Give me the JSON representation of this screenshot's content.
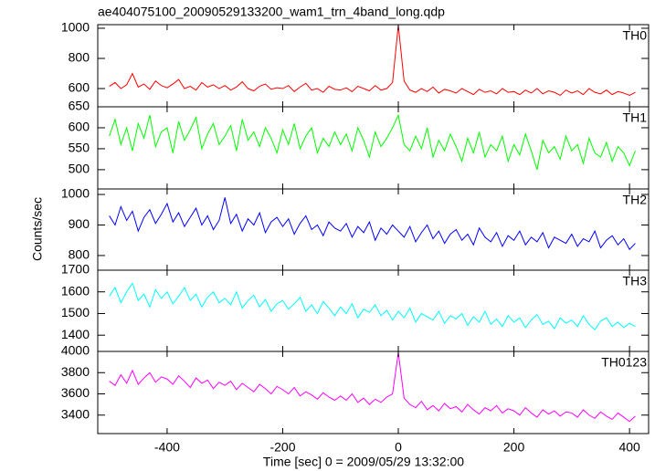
{
  "chart_data": [
    {
      "type": "line",
      "title": "ae404075100_20090529133200_wam1_trn_4band_long.qdp",
      "label": "TH0",
      "color": "#ff0000",
      "xlim": [
        -520,
        433
      ],
      "ylim": [
        479,
        1024
      ],
      "yticks": [
        600,
        800,
        1000
      ],
      "x": [
        -500,
        -490,
        -480,
        -470,
        -460,
        -450,
        -440,
        -430,
        -420,
        -410,
        -400,
        -390,
        -380,
        -370,
        -360,
        -350,
        -340,
        -330,
        -320,
        -310,
        -300,
        -290,
        -280,
        -270,
        -260,
        -250,
        -240,
        -230,
        -220,
        -210,
        -200,
        -190,
        -180,
        -170,
        -160,
        -150,
        -140,
        -130,
        -120,
        -110,
        -100,
        -90,
        -80,
        -70,
        -60,
        -50,
        -40,
        -30,
        -20,
        -10,
        0,
        10,
        20,
        30,
        40,
        50,
        60,
        70,
        80,
        90,
        100,
        110,
        120,
        130,
        140,
        150,
        160,
        170,
        180,
        190,
        200,
        210,
        220,
        230,
        240,
        250,
        260,
        270,
        280,
        290,
        300,
        310,
        320,
        330,
        340,
        350,
        360,
        370,
        380,
        390,
        400,
        410
      ],
      "values": [
        615,
        640,
        600,
        625,
        700,
        610,
        630,
        595,
        650,
        620,
        605,
        630,
        660,
        600,
        615,
        590,
        640,
        610,
        625,
        600,
        620,
        590,
        610,
        645,
        600,
        585,
        615,
        630,
        595,
        605,
        600,
        620,
        580,
        610,
        635,
        590,
        600,
        575,
        615,
        595,
        590,
        605,
        580,
        615,
        600,
        585,
        620,
        590,
        600,
        640,
        1020,
        650,
        590,
        575,
        600,
        580,
        610,
        570,
        595,
        585,
        570,
        600,
        580,
        560,
        595,
        575,
        585,
        565,
        600,
        575,
        580,
        560,
        590,
        570,
        600,
        565,
        585,
        575,
        555,
        590,
        570,
        585,
        560,
        600,
        575,
        565,
        590,
        560,
        580,
        570,
        555,
        575
      ]
    },
    {
      "type": "line",
      "label": "TH1",
      "color": "#00ff00",
      "xlim": [
        -520,
        433
      ],
      "ylim": [
        454,
        650
      ],
      "yticks": [
        500,
        550,
        600,
        650
      ],
      "x": [
        -500,
        -490,
        -480,
        -470,
        -460,
        -450,
        -440,
        -430,
        -420,
        -410,
        -400,
        -390,
        -380,
        -370,
        -360,
        -350,
        -340,
        -330,
        -320,
        -310,
        -300,
        -290,
        -280,
        -270,
        -260,
        -250,
        -240,
        -230,
        -220,
        -210,
        -200,
        -190,
        -180,
        -170,
        -160,
        -150,
        -140,
        -130,
        -120,
        -110,
        -100,
        -90,
        -80,
        -70,
        -60,
        -50,
        -40,
        -30,
        -20,
        -10,
        0,
        10,
        20,
        30,
        40,
        50,
        60,
        70,
        80,
        90,
        100,
        110,
        120,
        130,
        140,
        150,
        160,
        170,
        180,
        190,
        200,
        210,
        220,
        230,
        240,
        250,
        260,
        270,
        280,
        290,
        300,
        310,
        320,
        330,
        340,
        350,
        360,
        370,
        380,
        390,
        400,
        410
      ],
      "values": [
        580,
        620,
        560,
        600,
        545,
        610,
        575,
        630,
        555,
        590,
        600,
        540,
        615,
        570,
        595,
        625,
        550,
        585,
        610,
        560,
        580,
        605,
        545,
        620,
        570,
        590,
        555,
        600,
        575,
        540,
        595,
        560,
        610,
        550,
        580,
        600,
        540,
        575,
        555,
        590,
        560,
        585,
        545,
        600,
        570,
        530,
        590,
        555,
        575,
        600,
        630,
        560,
        545,
        580,
        550,
        600,
        530,
        570,
        545,
        585,
        555,
        520,
        575,
        540,
        590,
        530,
        560,
        545,
        580,
        520,
        560,
        535,
        585,
        545,
        500,
        570,
        540,
        555,
        525,
        580,
        545,
        560,
        515,
        575,
        540,
        530,
        565,
        520,
        555,
        540,
        510,
        545
      ]
    },
    {
      "type": "line",
      "label": "TH2",
      "color": "#0000ff",
      "ylabel": "Counts/sec",
      "xlim": [
        -520,
        433
      ],
      "ylim": [
        752,
        1018
      ],
      "yticks": [
        800,
        900,
        1000
      ],
      "x": [
        -500,
        -490,
        -480,
        -470,
        -460,
        -450,
        -440,
        -430,
        -420,
        -410,
        -400,
        -390,
        -380,
        -370,
        -360,
        -350,
        -340,
        -330,
        -320,
        -310,
        -300,
        -290,
        -280,
        -270,
        -260,
        -250,
        -240,
        -230,
        -220,
        -210,
        -200,
        -190,
        -180,
        -170,
        -160,
        -150,
        -140,
        -130,
        -120,
        -110,
        -100,
        -90,
        -80,
        -70,
        -60,
        -50,
        -40,
        -30,
        -20,
        -10,
        0,
        10,
        20,
        30,
        40,
        50,
        60,
        70,
        80,
        90,
        100,
        110,
        120,
        130,
        140,
        150,
        160,
        170,
        180,
        190,
        200,
        210,
        220,
        230,
        240,
        250,
        260,
        270,
        280,
        290,
        300,
        310,
        320,
        330,
        340,
        350,
        360,
        370,
        380,
        390,
        400,
        410
      ],
      "values": [
        930,
        900,
        960,
        915,
        945,
        880,
        925,
        950,
        905,
        935,
        970,
        910,
        940,
        895,
        925,
        955,
        900,
        930,
        885,
        915,
        990,
        905,
        935,
        880,
        920,
        900,
        940,
        875,
        910,
        925,
        895,
        920,
        870,
        905,
        930,
        885,
        900,
        865,
        910,
        890,
        880,
        905,
        860,
        895,
        875,
        910,
        850,
        890,
        870,
        900,
        880,
        860,
        895,
        845,
        875,
        900,
        855,
        880,
        840,
        870,
        885,
        850,
        870,
        835,
        890,
        860,
        845,
        875,
        830,
        865,
        850,
        880,
        835,
        860,
        845,
        875,
        825,
        860,
        850,
        840,
        870,
        830,
        855,
        845,
        880,
        825,
        850,
        865,
        835,
        855,
        820,
        840
      ]
    },
    {
      "type": "line",
      "label": "TH3",
      "color": "#00ffff",
      "xlim": [
        -520,
        433
      ],
      "ylim": [
        1325,
        1700
      ],
      "yticks": [
        1400,
        1500,
        1600,
        1700
      ],
      "x": [
        -500,
        -490,
        -480,
        -470,
        -460,
        -450,
        -440,
        -430,
        -420,
        -410,
        -400,
        -390,
        -380,
        -370,
        -360,
        -350,
        -340,
        -330,
        -320,
        -310,
        -300,
        -290,
        -280,
        -270,
        -260,
        -250,
        -240,
        -230,
        -220,
        -210,
        -200,
        -190,
        -180,
        -170,
        -160,
        -150,
        -140,
        -130,
        -120,
        -110,
        -100,
        -90,
        -80,
        -70,
        -60,
        -50,
        -40,
        -30,
        -20,
        -10,
        0,
        10,
        20,
        30,
        40,
        50,
        60,
        70,
        80,
        90,
        100,
        110,
        120,
        130,
        140,
        150,
        160,
        170,
        180,
        190,
        200,
        210,
        220,
        230,
        240,
        250,
        260,
        270,
        280,
        290,
        300,
        310,
        320,
        330,
        340,
        350,
        360,
        370,
        380,
        390,
        400,
        410
      ],
      "values": [
        1580,
        1620,
        1550,
        1600,
        1640,
        1560,
        1590,
        1530,
        1610,
        1570,
        1600,
        1545,
        1580,
        1620,
        1560,
        1590,
        1530,
        1575,
        1600,
        1550,
        1570,
        1540,
        1600,
        1525,
        1560,
        1585,
        1530,
        1565,
        1510,
        1545,
        1560,
        1520,
        1545,
        1575,
        1510,
        1540,
        1500,
        1555,
        1525,
        1490,
        1530,
        1500,
        1545,
        1480,
        1520,
        1505,
        1540,
        1490,
        1515,
        1470,
        1510,
        1480,
        1525,
        1460,
        1500,
        1485,
        1470,
        1510,
        1455,
        1490,
        1475,
        1500,
        1445,
        1485,
        1460,
        1510,
        1450,
        1475,
        1440,
        1490,
        1460,
        1480,
        1435,
        1470,
        1495,
        1450,
        1465,
        1430,
        1480,
        1455,
        1470,
        1440,
        1490,
        1450,
        1425,
        1465,
        1480,
        1440,
        1460,
        1435,
        1455,
        1440
      ]
    },
    {
      "type": "line",
      "label": "TH0123",
      "color": "#ff00ff",
      "xlabel": "Time [sec] 0 = 2009/05/29 13:32:00",
      "xlim": [
        -520,
        433
      ],
      "xticks": [
        -400,
        -200,
        0,
        200,
        400
      ],
      "ylim": [
        3226,
        4000
      ],
      "yticks": [
        3400,
        3600,
        3800,
        4000
      ],
      "x": [
        -500,
        -490,
        -480,
        -470,
        -460,
        -450,
        -440,
        -430,
        -420,
        -410,
        -400,
        -390,
        -380,
        -370,
        -360,
        -350,
        -340,
        -330,
        -320,
        -310,
        -300,
        -290,
        -280,
        -270,
        -260,
        -250,
        -240,
        -230,
        -220,
        -210,
        -200,
        -190,
        -180,
        -170,
        -160,
        -150,
        -140,
        -130,
        -120,
        -110,
        -100,
        -90,
        -80,
        -70,
        -60,
        -50,
        -40,
        -30,
        -20,
        -10,
        0,
        10,
        20,
        30,
        40,
        50,
        60,
        70,
        80,
        90,
        100,
        110,
        120,
        130,
        140,
        150,
        160,
        170,
        180,
        190,
        200,
        210,
        220,
        230,
        240,
        250,
        260,
        270,
        280,
        290,
        300,
        310,
        320,
        330,
        340,
        350,
        360,
        370,
        380,
        390,
        400,
        410
      ],
      "values": [
        3720,
        3680,
        3780,
        3700,
        3820,
        3690,
        3750,
        3800,
        3710,
        3760,
        3740,
        3690,
        3770,
        3720,
        3660,
        3750,
        3700,
        3730,
        3650,
        3710,
        3680,
        3720,
        3640,
        3700,
        3660,
        3620,
        3690,
        3650,
        3600,
        3670,
        3640,
        3600,
        3660,
        3580,
        3620,
        3590,
        3550,
        3610,
        3570,
        3540,
        3580,
        3540,
        3600,
        3520,
        3560,
        3500,
        3550,
        3520,
        3570,
        3600,
        3990,
        3560,
        3500,
        3470,
        3530,
        3450,
        3490,
        3440,
        3510,
        3460,
        3480,
        3430,
        3500,
        3450,
        3410,
        3470,
        3440,
        3490,
        3420,
        3460,
        3440,
        3400,
        3470,
        3420,
        3380,
        3450,
        3410,
        3440,
        3390,
        3430,
        3420,
        3380,
        3450,
        3400,
        3370,
        3430,
        3390,
        3360,
        3420,
        3380,
        3340,
        3390
      ]
    }
  ]
}
